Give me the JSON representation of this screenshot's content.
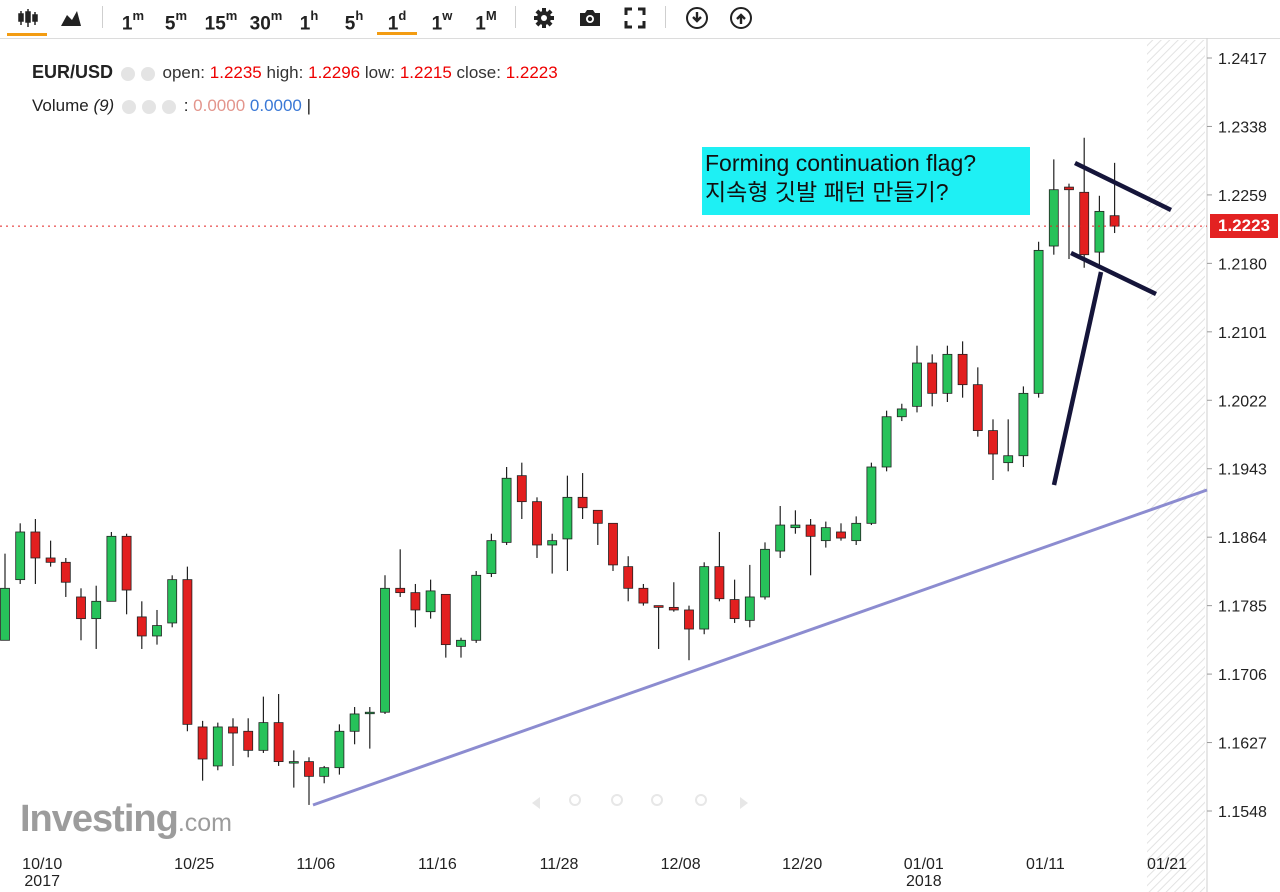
{
  "toolbar": {
    "timeframes": [
      {
        "num": "1",
        "unit": "m"
      },
      {
        "num": "5",
        "unit": "m"
      },
      {
        "num": "15",
        "unit": "m"
      },
      {
        "num": "30",
        "unit": "m"
      },
      {
        "num": "1",
        "unit": "h"
      },
      {
        "num": "5",
        "unit": "h"
      },
      {
        "num": "1",
        "unit": "d"
      },
      {
        "num": "1",
        "unit": "w"
      },
      {
        "num": "1",
        "unit": "M"
      }
    ],
    "active_timeframe": "1d",
    "icons": [
      "candlestick-icon",
      "area-chart-icon",
      "gear-icon",
      "camera-icon",
      "fullscreen-icon",
      "download-icon",
      "upload-icon"
    ],
    "active_color": "#f39c12"
  },
  "legend": {
    "symbol": "EUR/USD",
    "open_label": "open:",
    "open": "1.2235",
    "high_label": "high:",
    "high": "1.2296",
    "low_label": "low:",
    "low": "1.2215",
    "close_label": "close:",
    "close": "1.2223"
  },
  "volume_legend": {
    "label": "Volume",
    "period": "(9)",
    "sep": ":",
    "value1": "0.0000",
    "value2": "0.0000",
    "cursor": "|"
  },
  "annotation": {
    "line1": "Forming continuation flag?",
    "line2": "지속형 깃발 패턴 만들기?",
    "background": "#1ef0f4"
  },
  "current_price_label": "1.2223",
  "logo": {
    "main": "Investing",
    "suffix": ".com"
  },
  "colors": {
    "up": "#27c25a",
    "down": "#e21f1f",
    "trendline": "#8c8cd0",
    "flag": "#15153a",
    "price_line": "#e32222"
  },
  "chart_data": {
    "type": "candlestick",
    "title": "EUR/USD",
    "ylim": [
      1.15,
      1.244
    ],
    "y_ticks": [
      "1.2417",
      "1.2338",
      "1.2259",
      "1.2180",
      "1.2101",
      "1.2022",
      "1.1943",
      "1.1864",
      "1.1785",
      "1.1706",
      "1.1627",
      "1.1548"
    ],
    "x_ticks": [
      {
        "label": "10/10",
        "sub": "2017",
        "index": 1
      },
      {
        "label": "10/25",
        "sub": "",
        "index": 11
      },
      {
        "label": "11/06",
        "sub": "",
        "index": 19
      },
      {
        "label": "11/16",
        "sub": "",
        "index": 27
      },
      {
        "label": "11/28",
        "sub": "",
        "index": 35
      },
      {
        "label": "12/08",
        "sub": "",
        "index": 43
      },
      {
        "label": "12/20",
        "sub": "",
        "index": 51
      },
      {
        "label": "01/01",
        "sub": "2018",
        "index": 59
      },
      {
        "label": "01/11",
        "sub": "",
        "index": 67
      },
      {
        "label": "01/21",
        "sub": "",
        "index": 75
      }
    ],
    "candles": [
      {
        "o": 1.1745,
        "h": 1.1845,
        "l": 1.1745,
        "c": 1.1805
      },
      {
        "o": 1.1815,
        "h": 1.188,
        "l": 1.181,
        "c": 1.187
      },
      {
        "o": 1.187,
        "h": 1.1885,
        "l": 1.181,
        "c": 1.184
      },
      {
        "o": 1.184,
        "h": 1.186,
        "l": 1.183,
        "c": 1.1835
      },
      {
        "o": 1.1835,
        "h": 1.184,
        "l": 1.1795,
        "c": 1.1812
      },
      {
        "o": 1.1795,
        "h": 1.1805,
        "l": 1.1745,
        "c": 1.177
      },
      {
        "o": 1.177,
        "h": 1.1808,
        "l": 1.1735,
        "c": 1.179
      },
      {
        "o": 1.179,
        "h": 1.187,
        "l": 1.179,
        "c": 1.1865
      },
      {
        "o": 1.1865,
        "h": 1.1868,
        "l": 1.1775,
        "c": 1.1803
      },
      {
        "o": 1.1772,
        "h": 1.179,
        "l": 1.1735,
        "c": 1.175
      },
      {
        "o": 1.175,
        "h": 1.178,
        "l": 1.174,
        "c": 1.1762
      },
      {
        "o": 1.1765,
        "h": 1.182,
        "l": 1.176,
        "c": 1.1815
      },
      {
        "o": 1.1815,
        "h": 1.183,
        "l": 1.164,
        "c": 1.1648
      },
      {
        "o": 1.1645,
        "h": 1.1652,
        "l": 1.1583,
        "c": 1.1608
      },
      {
        "o": 1.16,
        "h": 1.165,
        "l": 1.1595,
        "c": 1.1645
      },
      {
        "o": 1.1645,
        "h": 1.1655,
        "l": 1.16,
        "c": 1.1638
      },
      {
        "o": 1.164,
        "h": 1.1655,
        "l": 1.161,
        "c": 1.1618
      },
      {
        "o": 1.1618,
        "h": 1.168,
        "l": 1.1615,
        "c": 1.165
      },
      {
        "o": 1.165,
        "h": 1.1683,
        "l": 1.16,
        "c": 1.1605
      },
      {
        "o": 1.1605,
        "h": 1.1618,
        "l": 1.1575,
        "c": 1.1605
      },
      {
        "o": 1.1605,
        "h": 1.161,
        "l": 1.1555,
        "c": 1.1588
      },
      {
        "o": 1.1588,
        "h": 1.16,
        "l": 1.158,
        "c": 1.1598
      },
      {
        "o": 1.1598,
        "h": 1.1648,
        "l": 1.159,
        "c": 1.164
      },
      {
        "o": 1.164,
        "h": 1.1668,
        "l": 1.1625,
        "c": 1.166
      },
      {
        "o": 1.1662,
        "h": 1.1668,
        "l": 1.162,
        "c": 1.1662
      },
      {
        "o": 1.1662,
        "h": 1.182,
        "l": 1.166,
        "c": 1.1805
      },
      {
        "o": 1.1805,
        "h": 1.185,
        "l": 1.1795,
        "c": 1.18
      },
      {
        "o": 1.18,
        "h": 1.181,
        "l": 1.176,
        "c": 1.178
      },
      {
        "o": 1.1778,
        "h": 1.1815,
        "l": 1.177,
        "c": 1.1802
      },
      {
        "o": 1.1798,
        "h": 1.1798,
        "l": 1.1725,
        "c": 1.174
      },
      {
        "o": 1.1738,
        "h": 1.1748,
        "l": 1.1725,
        "c": 1.1745
      },
      {
        "o": 1.1745,
        "h": 1.1825,
        "l": 1.1742,
        "c": 1.182
      },
      {
        "o": 1.1822,
        "h": 1.1868,
        "l": 1.1818,
        "c": 1.186
      },
      {
        "o": 1.1858,
        "h": 1.1945,
        "l": 1.1855,
        "c": 1.1932
      },
      {
        "o": 1.1935,
        "h": 1.195,
        "l": 1.1885,
        "c": 1.1905
      },
      {
        "o": 1.1905,
        "h": 1.191,
        "l": 1.184,
        "c": 1.1855
      },
      {
        "o": 1.1855,
        "h": 1.1868,
        "l": 1.1822,
        "c": 1.186
      },
      {
        "o": 1.1862,
        "h": 1.1935,
        "l": 1.1825,
        "c": 1.191
      },
      {
        "o": 1.191,
        "h": 1.1938,
        "l": 1.1885,
        "c": 1.1898
      },
      {
        "o": 1.1895,
        "h": 1.1895,
        "l": 1.1855,
        "c": 1.188
      },
      {
        "o": 1.188,
        "h": 1.188,
        "l": 1.1825,
        "c": 1.1832
      },
      {
        "o": 1.183,
        "h": 1.1842,
        "l": 1.179,
        "c": 1.1805
      },
      {
        "o": 1.1805,
        "h": 1.181,
        "l": 1.1785,
        "c": 1.1788
      },
      {
        "o": 1.1785,
        "h": 1.1785,
        "l": 1.1735,
        "c": 1.1783
      },
      {
        "o": 1.1783,
        "h": 1.1812,
        "l": 1.1778,
        "c": 1.178
      },
      {
        "o": 1.178,
        "h": 1.1785,
        "l": 1.1722,
        "c": 1.1758
      },
      {
        "o": 1.1758,
        "h": 1.1835,
        "l": 1.1752,
        "c": 1.183
      },
      {
        "o": 1.183,
        "h": 1.187,
        "l": 1.179,
        "c": 1.1793
      },
      {
        "o": 1.1792,
        "h": 1.1815,
        "l": 1.1765,
        "c": 1.177
      },
      {
        "o": 1.1768,
        "h": 1.1832,
        "l": 1.176,
        "c": 1.1795
      },
      {
        "o": 1.1795,
        "h": 1.1858,
        "l": 1.1792,
        "c": 1.185
      },
      {
        "o": 1.1848,
        "h": 1.19,
        "l": 1.184,
        "c": 1.1878
      },
      {
        "o": 1.1875,
        "h": 1.1895,
        "l": 1.1868,
        "c": 1.1878
      },
      {
        "o": 1.1878,
        "h": 1.1885,
        "l": 1.182,
        "c": 1.1865
      },
      {
        "o": 1.186,
        "h": 1.1882,
        "l": 1.1852,
        "c": 1.1875
      },
      {
        "o": 1.187,
        "h": 1.188,
        "l": 1.186,
        "c": 1.1863
      },
      {
        "o": 1.186,
        "h": 1.1888,
        "l": 1.1855,
        "c": 1.188
      },
      {
        "o": 1.188,
        "h": 1.195,
        "l": 1.1878,
        "c": 1.1945
      },
      {
        "o": 1.1945,
        "h": 1.201,
        "l": 1.194,
        "c": 1.2003
      },
      {
        "o": 1.2003,
        "h": 1.2018,
        "l": 1.1998,
        "c": 1.2012
      },
      {
        "o": 1.2015,
        "h": 1.2085,
        "l": 1.2008,
        "c": 1.2065
      },
      {
        "o": 1.2065,
        "h": 1.2075,
        "l": 1.2015,
        "c": 1.203
      },
      {
        "o": 1.203,
        "h": 1.2085,
        "l": 1.202,
        "c": 1.2075
      },
      {
        "o": 1.2075,
        "h": 1.209,
        "l": 1.2025,
        "c": 1.204
      },
      {
        "o": 1.204,
        "h": 1.206,
        "l": 1.198,
        "c": 1.1987
      },
      {
        "o": 1.1987,
        "h": 1.2,
        "l": 1.193,
        "c": 1.196
      },
      {
        "o": 1.195,
        "h": 1.2,
        "l": 1.194,
        "c": 1.1958
      },
      {
        "o": 1.1958,
        "h": 1.2038,
        "l": 1.1945,
        "c": 1.203
      },
      {
        "o": 1.203,
        "h": 1.2205,
        "l": 1.2025,
        "c": 1.2195
      },
      {
        "o": 1.22,
        "h": 1.23,
        "l": 1.219,
        "c": 1.2265
      },
      {
        "o": 1.2268,
        "h": 1.2272,
        "l": 1.2185,
        "c": 1.2265
      },
      {
        "o": 1.2262,
        "h": 1.2325,
        "l": 1.2175,
        "c": 1.219
      },
      {
        "o": 1.2193,
        "h": 1.2258,
        "l": 1.2178,
        "c": 1.224
      },
      {
        "o": 1.2235,
        "h": 1.2296,
        "l": 1.2215,
        "c": 1.2223
      }
    ]
  }
}
